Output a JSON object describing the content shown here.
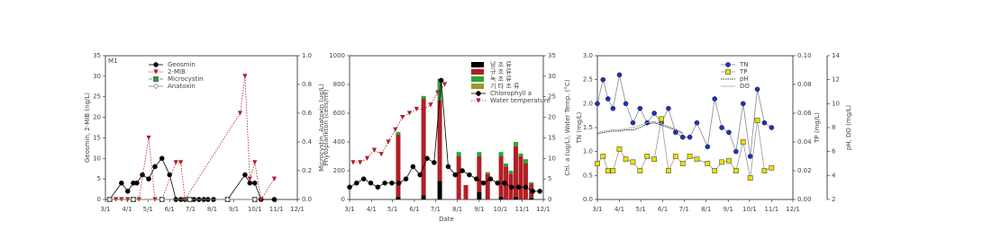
{
  "chart_data": [
    {
      "type": "line",
      "title": "M1",
      "legend": "upper center",
      "ylabel": "Geosmin, 2-MIB (ng/L)",
      "y2label": "Microcystin, Anatoxin (ug/L)",
      "xlim": [
        0,
        275
      ],
      "xticks": [
        {
          "value": 0,
          "label": "3/1"
        },
        {
          "value": 31,
          "label": "4/1"
        },
        {
          "value": 61,
          "label": "5/1"
        },
        {
          "value": 92,
          "label": "6/1"
        },
        {
          "value": 122,
          "label": "7/1"
        },
        {
          "value": 153,
          "label": "8/1"
        },
        {
          "value": 184,
          "label": "9/1"
        },
        {
          "value": 214,
          "label": "10/1"
        },
        {
          "value": 245,
          "label": "11/1"
        },
        {
          "value": 275,
          "label": "12/1"
        }
      ],
      "ylim": [
        0,
        35
      ],
      "yticks": [
        0,
        5,
        10,
        15,
        20,
        25,
        30,
        35
      ],
      "y2lim": [
        0,
        1
      ],
      "y2ticks": [
        {
          "value": 0,
          "label": "0.0"
        },
        0.2,
        0.4,
        0.6,
        0.8,
        {
          "value": 1,
          "label": "1.0"
        }
      ],
      "series": [
        {
          "name": "Geosmin",
          "kind": "line",
          "marker": "circle",
          "color": "#000000",
          "dash": "",
          "x": [
            6,
            23,
            32,
            40,
            45,
            53,
            62,
            71,
            81,
            92,
            101,
            108,
            114,
            121,
            127,
            134,
            141,
            147,
            155,
            175,
            200,
            207,
            214,
            223,
            242
          ],
          "values": [
            0,
            4,
            2,
            4,
            4,
            6,
            5,
            8,
            10,
            6,
            0,
            0,
            0,
            0,
            0,
            0,
            0,
            0,
            0,
            0,
            6,
            4,
            4,
            0,
            0
          ]
        },
        {
          "name": "2-MIB",
          "kind": "line",
          "marker": "tri-down",
          "color": "#b01e2a",
          "dash": "1.5 1.5",
          "x": [
            6,
            15,
            23,
            32,
            40,
            48,
            62,
            71,
            81,
            101,
            108,
            114,
            193,
            200,
            207,
            214,
            223,
            242
          ],
          "values": [
            0,
            0,
            0,
            0,
            0,
            0,
            15,
            0,
            0,
            9,
            9,
            0,
            21,
            30,
            5,
            9,
            0,
            5
          ]
        },
        {
          "name": "Microcystin",
          "kind": "line",
          "marker": "square",
          "color": "#2e9a3a",
          "dash": "4 2",
          "axis": "y2",
          "x": [
            6,
            40,
            81,
            121,
            175,
            214
          ],
          "values": [
            0,
            0,
            0,
            0,
            0,
            0
          ]
        },
        {
          "name": "Anatoxin",
          "kind": "line",
          "marker": "diamond-open",
          "color": "#808080",
          "dash": "",
          "axis": "y2",
          "x": [
            6,
            40,
            81,
            121,
            175,
            214
          ],
          "values": [
            0,
            0,
            0,
            0,
            0,
            0
          ]
        }
      ]
    },
    {
      "type": "combo",
      "legend": "upper right",
      "xlabel": "Date",
      "ylabel": "Phytoplankton (cells/ml)",
      "y2label": "Chl. a (ug/L), Water Temp. (°C)",
      "xlim": [
        0,
        275
      ],
      "xticks": [
        {
          "value": 0,
          "label": "3/1"
        },
        {
          "value": 31,
          "label": "4/1"
        },
        {
          "value": 61,
          "label": "5/1"
        },
        {
          "value": 92,
          "label": "6/1"
        },
        {
          "value": 122,
          "label": "7/1"
        },
        {
          "value": 153,
          "label": "8/1"
        },
        {
          "value": 184,
          "label": "9/1"
        },
        {
          "value": 214,
          "label": "10/1"
        },
        {
          "value": 245,
          "label": "11/1"
        },
        {
          "value": 275,
          "label": "12/1"
        }
      ],
      "ylim": [
        0,
        1000
      ],
      "yticks": [
        0,
        200,
        400,
        600,
        800,
        1000
      ],
      "y2lim": [
        0,
        35
      ],
      "y2ticks": [
        0,
        5,
        10,
        15,
        20,
        25,
        30,
        35
      ],
      "series": [
        {
          "name": "남 조 류",
          "kind": "bar",
          "color": "#000000",
          "x": [
            69,
            105,
            128,
            155,
            165,
            184,
            196,
            215,
            222,
            229,
            236,
            243,
            250,
            258
          ],
          "values": [
            20,
            30,
            130,
            0,
            0,
            50,
            0,
            20,
            0,
            0,
            20,
            0,
            0,
            10
          ]
        },
        {
          "name": "규 조 류",
          "kind": "bar",
          "color": "#b21f24",
          "x": [
            69,
            105,
            128,
            155,
            165,
            184,
            196,
            215,
            222,
            229,
            236,
            243,
            250,
            258
          ],
          "values": [
            430,
            670,
            560,
            300,
            100,
            250,
            180,
            280,
            230,
            180,
            350,
            300,
            250,
            100
          ]
        },
        {
          "name": "녹 조 류",
          "kind": "bar",
          "color": "#2fa33a",
          "x": [
            69,
            105,
            128,
            155,
            165,
            184,
            196,
            215,
            222,
            229,
            236,
            243,
            250,
            258
          ],
          "values": [
            20,
            20,
            150,
            30,
            0,
            30,
            10,
            30,
            20,
            20,
            30,
            20,
            30,
            10
          ]
        },
        {
          "name": "기 타 조 류",
          "kind": "bar",
          "color": "#9a9a2a",
          "x": [
            69,
            105,
            128,
            155,
            165,
            184,
            196,
            215,
            222,
            229,
            236,
            243,
            250,
            258
          ],
          "values": [
            0,
            0,
            0,
            0,
            0,
            0,
            0,
            0,
            0,
            0,
            0,
            0,
            0,
            0
          ]
        },
        {
          "name": "Chlorophyll a",
          "kind": "line",
          "marker": "circle",
          "color": "#000000",
          "dash": "",
          "axis": "y2",
          "x": [
            0,
            10,
            20,
            30,
            40,
            50,
            60,
            70,
            80,
            90,
            100,
            110,
            120,
            130,
            140,
            150,
            160,
            170,
            180,
            190,
            200,
            210,
            220,
            230,
            240,
            250,
            260,
            270
          ],
          "values": [
            3,
            4,
            5,
            4,
            3,
            4,
            4,
            4,
            5,
            8,
            6,
            10,
            9,
            29,
            8,
            6,
            7,
            6,
            5,
            4,
            5,
            4,
            4,
            3,
            3,
            3,
            2,
            2
          ]
        },
        {
          "name": "Water temperature",
          "kind": "line",
          "marker": "tri-down",
          "color": "#b01e2a",
          "dash": "1.5 1.5",
          "axis": "y2",
          "x": [
            5,
            15,
            25,
            35,
            45,
            55,
            65,
            75,
            85,
            95,
            105,
            115,
            125,
            135
          ],
          "values": [
            9,
            9,
            10,
            12,
            11,
            14,
            17,
            20,
            21,
            22,
            22,
            23,
            26,
            28
          ]
        }
      ]
    },
    {
      "type": "line",
      "legend": "upper right",
      "ylabel": "TN (mg/L)",
      "y2label": "TP (mg/L)",
      "y3label": "pH, DO (mg/L)",
      "xlim": [
        0,
        275
      ],
      "xticks": [
        {
          "value": 0,
          "label": "3/1"
        },
        {
          "value": 31,
          "label": "4/1"
        },
        {
          "value": 61,
          "label": "5/1"
        },
        {
          "value": 92,
          "label": "6/1"
        },
        {
          "value": 122,
          "label": "7/1"
        },
        {
          "value": 153,
          "label": "8/1"
        },
        {
          "value": 184,
          "label": "9/1"
        },
        {
          "value": 214,
          "label": "10/1"
        },
        {
          "value": 245,
          "label": "11/1"
        },
        {
          "value": 275,
          "label": "12/1"
        }
      ],
      "ylim": [
        0,
        3
      ],
      "yticks": [
        {
          "value": 0,
          "label": "0.0"
        },
        0.5,
        {
          "value": 1,
          "label": "1.0"
        },
        1.5,
        {
          "value": 2,
          "label": "2.0"
        },
        2.5,
        {
          "value": 3,
          "label": "3.0"
        }
      ],
      "y2lim": [
        0,
        0.1
      ],
      "y2ticks": [
        {
          "value": 0,
          "label": "0.00"
        },
        {
          "value": 0.02,
          "label": "0.02"
        },
        {
          "value": 0.04,
          "label": "0.04"
        },
        {
          "value": 0.06,
          "label": "0.06"
        },
        {
          "value": 0.08,
          "label": "0.08"
        },
        {
          "value": 0.1,
          "label": "0.10"
        }
      ],
      "y3lim": [
        2,
        14
      ],
      "y3ticks": [
        2,
        4,
        6,
        8,
        10,
        12,
        14
      ],
      "series": [
        {
          "name": "TN",
          "kind": "line",
          "marker": "circle",
          "color": "#1f2fbf",
          "dash": "",
          "linecolor": "#888888",
          "x": [
            0,
            8,
            15,
            22,
            31,
            40,
            50,
            60,
            70,
            80,
            90,
            100,
            110,
            120,
            130,
            140,
            155,
            165,
            175,
            185,
            195,
            205,
            215,
            225,
            235,
            245
          ],
          "values": [
            2.0,
            2.5,
            2.1,
            1.9,
            2.6,
            2.0,
            1.6,
            1.9,
            1.6,
            1.8,
            1.6,
            1.9,
            1.4,
            1.3,
            1.3,
            1.6,
            1.1,
            2.1,
            1.5,
            1.4,
            1.0,
            2.0,
            0.9,
            2.3,
            1.6,
            1.5
          ]
        },
        {
          "name": "TP",
          "kind": "line",
          "marker": "square",
          "color": "#e8e000",
          "dash": "",
          "axis": "y2",
          "linecolor": "#999999",
          "x": [
            0,
            8,
            15,
            22,
            31,
            40,
            50,
            60,
            70,
            80,
            90,
            100,
            110,
            120,
            130,
            140,
            155,
            165,
            175,
            185,
            195,
            205,
            215,
            225,
            235,
            245
          ],
          "values": [
            0.025,
            0.03,
            0.02,
            0.02,
            0.035,
            0.028,
            0.026,
            0.02,
            0.03,
            0.028,
            0.056,
            0.02,
            0.03,
            0.025,
            0.03,
            0.028,
            0.025,
            0.02,
            0.026,
            0.027,
            0.02,
            0.04,
            0.015,
            0.055,
            0.02,
            0.022
          ]
        },
        {
          "name": "pH",
          "kind": "line",
          "marker": "none",
          "color": "#000000",
          "dash": "1.5 1",
          "axis": "y3",
          "x": [
            0,
            10,
            20,
            30,
            40,
            50,
            60,
            70,
            80,
            90,
            100,
            110,
            120
          ],
          "values": [
            7.5,
            7.6,
            7.7,
            7.7,
            7.8,
            7.8,
            8.0,
            8.3,
            8.4,
            8.2,
            8.0,
            7.8,
            7.5
          ]
        },
        {
          "name": "DO",
          "kind": "line",
          "marker": "none",
          "color": "#aaaaaa",
          "dash": "",
          "axis": "y3",
          "x": [
            0,
            10,
            20,
            30,
            40,
            50,
            60,
            70,
            80,
            90,
            100,
            110,
            120
          ],
          "values": [
            7.6,
            7.7,
            7.8,
            7.8,
            7.9,
            8.0,
            8.2,
            8.4,
            8.5,
            8.3,
            8.1,
            7.9,
            7.6
          ]
        }
      ]
    }
  ]
}
